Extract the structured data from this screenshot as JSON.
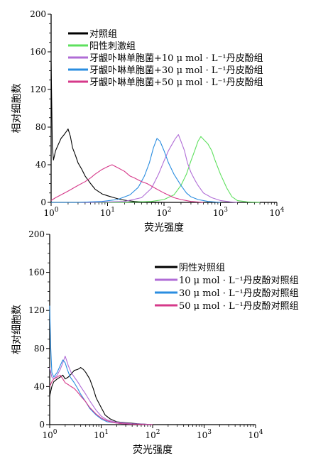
{
  "chart_data": [
    {
      "type": "line",
      "title": "",
      "xlabel": "荧光强度",
      "ylabel": "相对细胞数",
      "x_scale": "log10",
      "xlim": [
        1,
        10000
      ],
      "ylim": [
        0,
        200
      ],
      "yticks": [
        0,
        40,
        80,
        120,
        160,
        200
      ],
      "xtick_labels": [
        {
          "base": "10",
          "exp": "0"
        },
        {
          "base": "10",
          "exp": "1"
        },
        {
          "base": "10",
          "exp": "2"
        },
        {
          "base": "10",
          "exp": "3"
        },
        {
          "base": "10",
          "exp": "4"
        }
      ],
      "grid": false,
      "legend_position": "top-left",
      "series": [
        {
          "name": "对照组",
          "color": "#000000",
          "x": [
            1,
            1.05,
            1.1,
            1.2,
            1.35,
            1.5,
            1.7,
            1.9,
            2.0,
            2.2,
            2.4,
            2.7,
            3.0,
            3.5,
            4.0,
            5.0,
            6.0,
            8.0,
            10,
            13,
            17,
            22,
            30,
            40,
            60,
            100
          ],
          "y": [
            150,
            60,
            45,
            55,
            62,
            68,
            72,
            76,
            78,
            70,
            58,
            50,
            42,
            35,
            28,
            20,
            14,
            9,
            7,
            5,
            3,
            2,
            1,
            0.5,
            0.3,
            0
          ]
        },
        {
          "name": "阳性刺激组",
          "color": "#5ee05e",
          "x": [
            1,
            5,
            20,
            60,
            100,
            150,
            200,
            250,
            300,
            350,
            400,
            450,
            500,
            600,
            700,
            800,
            1000,
            1300,
            1600,
            2000,
            3000,
            5000
          ],
          "y": [
            0,
            0,
            0,
            1,
            3,
            8,
            18,
            30,
            44,
            55,
            65,
            70,
            67,
            62,
            55,
            45,
            30,
            15,
            6,
            2,
            0.5,
            0
          ]
        },
        {
          "name": "牙龈卟啉单胞菌+10 μ mol · L⁻¹丹皮酚组",
          "color": "#b06cd6",
          "x": [
            1,
            5,
            20,
            40,
            60,
            80,
            100,
            120,
            140,
            160,
            180,
            200,
            230,
            260,
            300,
            350,
            400,
            500,
            700,
            1000,
            1500,
            2000
          ],
          "y": [
            0,
            0,
            1,
            5,
            15,
            30,
            44,
            55,
            62,
            68,
            72,
            65,
            55,
            42,
            32,
            24,
            18,
            10,
            5,
            2,
            0.5,
            0
          ]
        },
        {
          "name": "牙龈卟啉单胞菌+30 μ mol · L⁻¹丹皮酚组",
          "color": "#2a8de0",
          "x": [
            1,
            3,
            8,
            15,
            25,
            35,
            45,
            55,
            65,
            75,
            85,
            100,
            120,
            150,
            200,
            250,
            300,
            400,
            600,
            1000
          ],
          "y": [
            0,
            0,
            1,
            3,
            8,
            16,
            28,
            42,
            58,
            68,
            65,
            55,
            42,
            30,
            18,
            10,
            6,
            3,
            1,
            0
          ]
        },
        {
          "name": "牙龈卟啉单胞菌+50 μ mol · L⁻¹丹皮酚组",
          "color": "#d6398a",
          "x": [
            1,
            1.2,
            1.5,
            2,
            3,
            4,
            5,
            6,
            8,
            10,
            12,
            15,
            20,
            25,
            30,
            40,
            50,
            70,
            100,
            150,
            200,
            300,
            500
          ],
          "y": [
            2,
            5,
            8,
            12,
            18,
            22,
            26,
            30,
            35,
            38,
            40,
            37,
            33,
            28,
            26,
            22,
            20,
            15,
            10,
            5,
            3,
            1,
            0
          ]
        }
      ]
    },
    {
      "type": "line",
      "title": "",
      "xlabel": "荧光强度",
      "ylabel": "相对细胞数",
      "x_scale": "log10",
      "xlim": [
        1,
        10000
      ],
      "ylim": [
        0,
        200
      ],
      "yticks": [
        0,
        40,
        80,
        120,
        160,
        200
      ],
      "xtick_labels": [
        {
          "base": "10",
          "exp": "0"
        },
        {
          "base": "10",
          "exp": "1"
        },
        {
          "base": "10",
          "exp": "2"
        },
        {
          "base": "10",
          "exp": "3"
        },
        {
          "base": "10",
          "exp": "4"
        }
      ],
      "grid": false,
      "legend_position": "top-right",
      "series": [
        {
          "name": "阴性对照组",
          "color": "#000000",
          "x": [
            1,
            1.1,
            1.2,
            1.4,
            1.6,
            1.8,
            2.0,
            2.3,
            2.6,
            3.0,
            3.5,
            4.0,
            4.5,
            5.0,
            6.0,
            7.0,
            8.0,
            10,
            12,
            15,
            20,
            30,
            50,
            100
          ],
          "y": [
            30,
            40,
            45,
            48,
            50,
            52,
            48,
            50,
            53,
            57,
            58,
            60,
            58,
            55,
            48,
            38,
            28,
            18,
            10,
            6,
            3,
            2,
            1,
            0
          ]
        },
        {
          "name": "10 μ mol · L⁻¹丹皮酚对照组",
          "color": "#b06cd6",
          "x": [
            1,
            1.1,
            1.2,
            1.4,
            1.6,
            1.8,
            2.0,
            2.3,
            2.6,
            3.0,
            3.5,
            4.0,
            5.0,
            6.0,
            8.0,
            10,
            13,
            18,
            25,
            40,
            70,
            100
          ],
          "y": [
            60,
            50,
            48,
            52,
            58,
            65,
            72,
            62,
            55,
            50,
            45,
            40,
            32,
            25,
            15,
            9,
            5,
            3,
            2,
            1,
            0.5,
            0
          ]
        },
        {
          "name": "30 μ mol · L⁻¹丹皮酚对照组",
          "color": "#2a8de0",
          "x": [
            1,
            1.05,
            1.1,
            1.2,
            1.4,
            1.6,
            1.8,
            2.0,
            2.2,
            2.5,
            3.0,
            3.5,
            4.0,
            5.0,
            6.0,
            8.0,
            10,
            13,
            18,
            25,
            40,
            70,
            100
          ],
          "y": [
            125,
            80,
            55,
            50,
            55,
            62,
            68,
            65,
            58,
            50,
            44,
            38,
            32,
            24,
            17,
            10,
            6,
            3,
            2,
            1,
            0.5,
            0.2,
            0
          ]
        },
        {
          "name": "50 μ mol · L⁻¹丹皮酚对照组",
          "color": "#d6398a",
          "x": [
            1,
            1.1,
            1.2,
            1.4,
            1.6,
            1.8,
            2.0,
            2.3,
            2.6,
            3.0,
            3.5,
            4.0,
            5.0,
            6.0,
            8.0,
            10,
            13,
            18,
            25,
            40,
            70,
            100
          ],
          "y": [
            40,
            45,
            48,
            50,
            52,
            48,
            44,
            42,
            40,
            38,
            34,
            30,
            24,
            18,
            11,
            7,
            4,
            2,
            1,
            0.5,
            0.2,
            0
          ]
        }
      ]
    }
  ]
}
